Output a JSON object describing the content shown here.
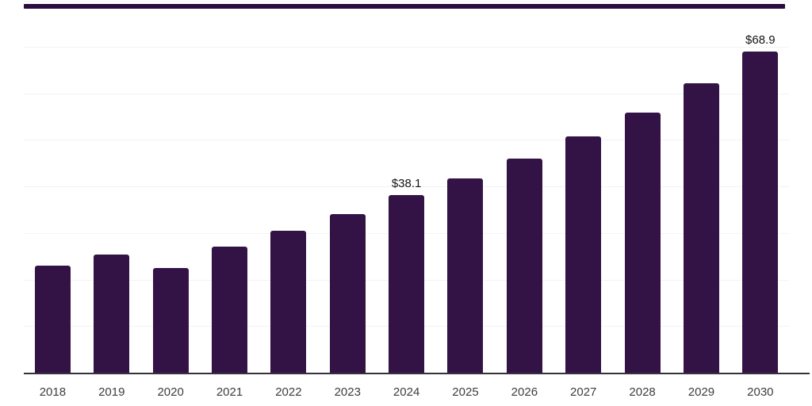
{
  "chart_data": {
    "type": "bar",
    "title": "",
    "xlabel": "",
    "ylabel": "",
    "categories": [
      "2018",
      "2019",
      "2020",
      "2021",
      "2022",
      "2023",
      "2024",
      "2025",
      "2026",
      "2027",
      "2028",
      "2029",
      "2030"
    ],
    "values": [
      22.9,
      25.4,
      22.4,
      27.1,
      30.4,
      34.0,
      38.1,
      41.7,
      46.0,
      50.7,
      55.9,
      62.1,
      68.9
    ],
    "value_labels": [
      "",
      "",
      "",
      "",
      "",
      "",
      "$38.1",
      "",
      "",
      "",
      "",
      "",
      "$68.9"
    ],
    "ylim": [
      0,
      80
    ],
    "gridline_step": 10,
    "grid": "horizontal",
    "legend": "none",
    "colors": {
      "bar": "#331246",
      "grid": "#f3f3f4",
      "axis": "#36323b",
      "value_label": "#141414",
      "tick_label": "#3d3d3d",
      "scrollbar": "#2a0c40",
      "background": "#ffffff"
    }
  }
}
